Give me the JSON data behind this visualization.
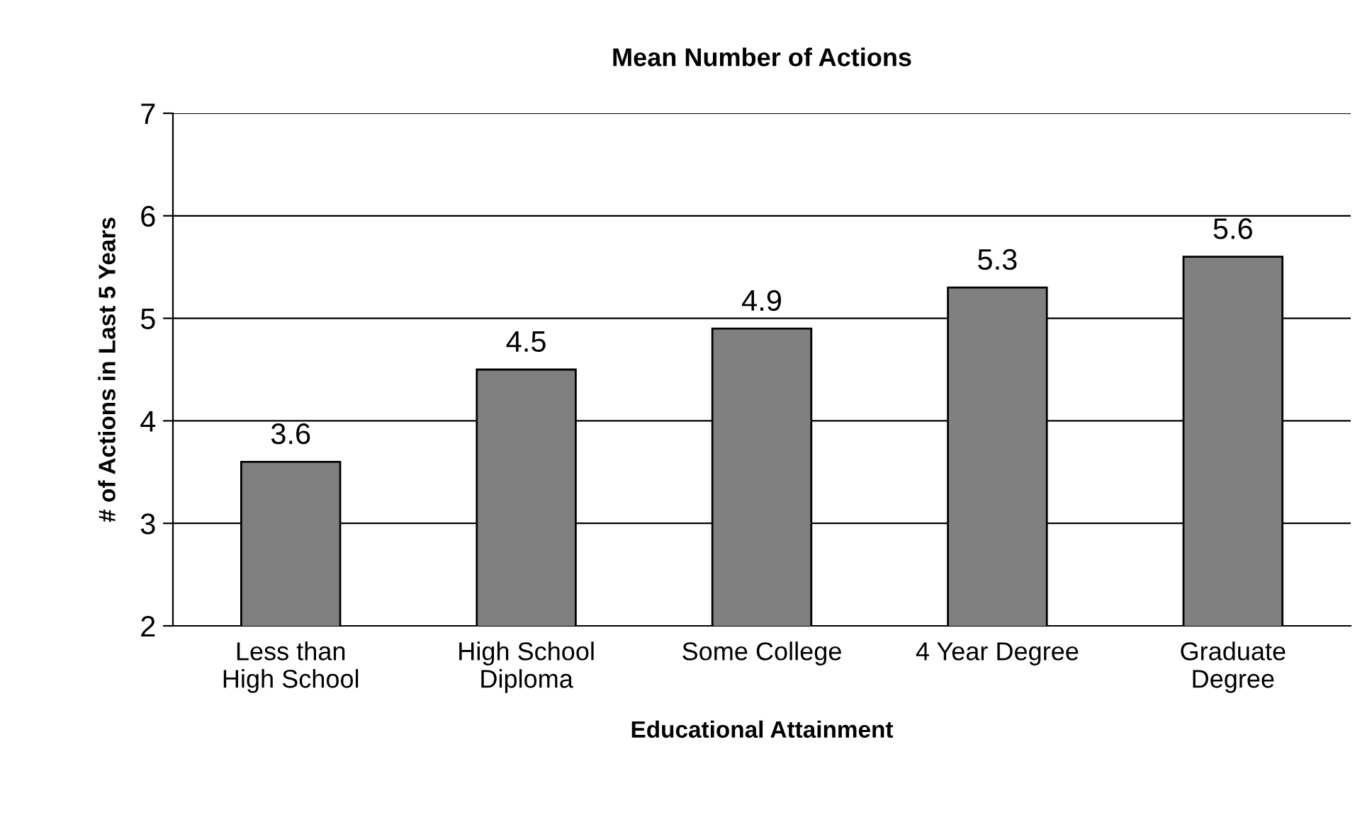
{
  "chart_data": {
    "type": "bar",
    "title": "Mean Number of Actions",
    "xlabel": "Educational Attainment",
    "ylabel": "# of Actions in Last 5 Years",
    "categories": [
      "Less than\nHigh School",
      "High School\nDiploma",
      "Some College",
      "4 Year Degree",
      "Graduate\nDegree"
    ],
    "values": [
      3.6,
      4.5,
      4.9,
      5.3,
      5.6
    ],
    "color": "#808080",
    "ylim": [
      2,
      7
    ],
    "yticks": [
      2,
      3,
      4,
      5,
      6,
      7
    ],
    "grid": "y",
    "data_labels": true,
    "legend": false
  }
}
